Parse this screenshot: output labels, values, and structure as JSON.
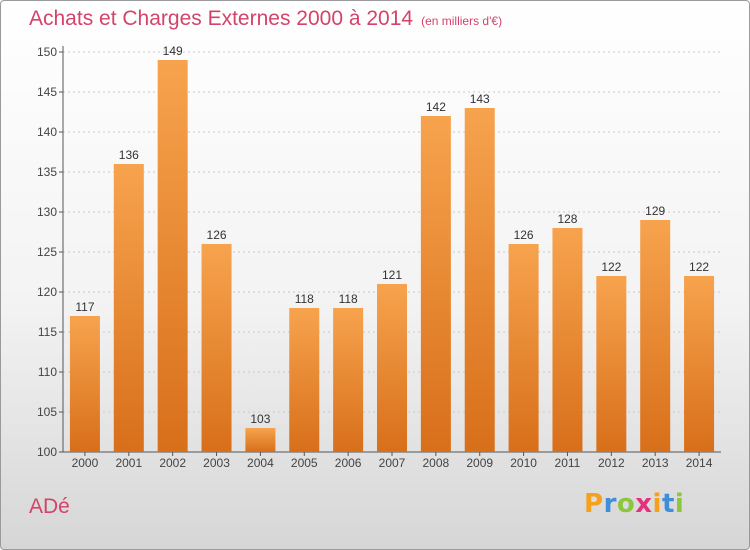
{
  "title": "Achats et Charges Externes 2000 à 2014",
  "unit": "(en milliers d'€)",
  "commune": "ADé",
  "brand": {
    "letters": [
      {
        "ch": "P",
        "color": "#f5a11b"
      },
      {
        "ch": "r",
        "color": "#3e8fd8"
      },
      {
        "ch": "o",
        "color": "#8cc63f"
      },
      {
        "ch": "x",
        "color": "#e4317e"
      },
      {
        "ch": "i",
        "color": "#f5a11b"
      },
      {
        "ch": "t",
        "color": "#3e8fd8"
      },
      {
        "ch": "i",
        "color": "#8cc63f"
      }
    ]
  },
  "colors": {
    "bar_top": "#f7a34e",
    "bar_bottom": "#d86f1a",
    "title": "#d4436a"
  },
  "chart_data": {
    "type": "bar",
    "title": "Achats et Charges Externes 2000 à 2014",
    "subtitle": "(en milliers d'€)",
    "categories": [
      "2000",
      "2001",
      "2002",
      "2003",
      "2004",
      "2005",
      "2006",
      "2007",
      "2008",
      "2009",
      "2010",
      "2011",
      "2012",
      "2013",
      "2014"
    ],
    "values": [
      117,
      136,
      149,
      126,
      103,
      118,
      118,
      121,
      142,
      143,
      126,
      128,
      122,
      129,
      122
    ],
    "ylim": [
      100,
      150
    ],
    "yticks": [
      100,
      105,
      110,
      115,
      120,
      125,
      130,
      135,
      140,
      145,
      150
    ],
    "xlabel": "",
    "ylabel": "",
    "grid": true,
    "data_labels": true
  }
}
